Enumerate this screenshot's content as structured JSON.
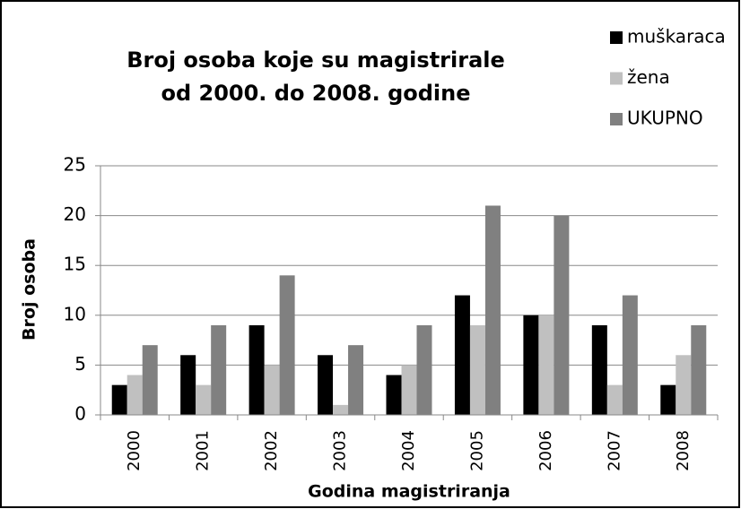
{
  "chart_data": {
    "type": "bar",
    "title": [
      "Broj osoba koje su magistrirale",
      "od 2000. do 2008. godine"
    ],
    "x_label": "Godina magistriranja",
    "y_label": "Broj osoba",
    "categories": [
      "2000",
      "2001",
      "2002",
      "2003",
      "2004",
      "2005",
      "2006",
      "2007",
      "2008"
    ],
    "series": [
      {
        "name": "muškaraca",
        "color": "#000000",
        "values": [
          3,
          6,
          9,
          6,
          4,
          12,
          10,
          9,
          3
        ]
      },
      {
        "name": "žena",
        "color": "#c0c0c0",
        "values": [
          4,
          3,
          5,
          1,
          5,
          9,
          10,
          3,
          6
        ]
      },
      {
        "name": "UKUPNO",
        "color": "#808080",
        "values": [
          7,
          9,
          14,
          7,
          9,
          21,
          20,
          12,
          9
        ]
      }
    ],
    "ylim": [
      0,
      25
    ],
    "yticks": [
      0,
      5,
      10,
      15,
      20,
      25
    ],
    "grid": true,
    "legend": "top-right"
  }
}
